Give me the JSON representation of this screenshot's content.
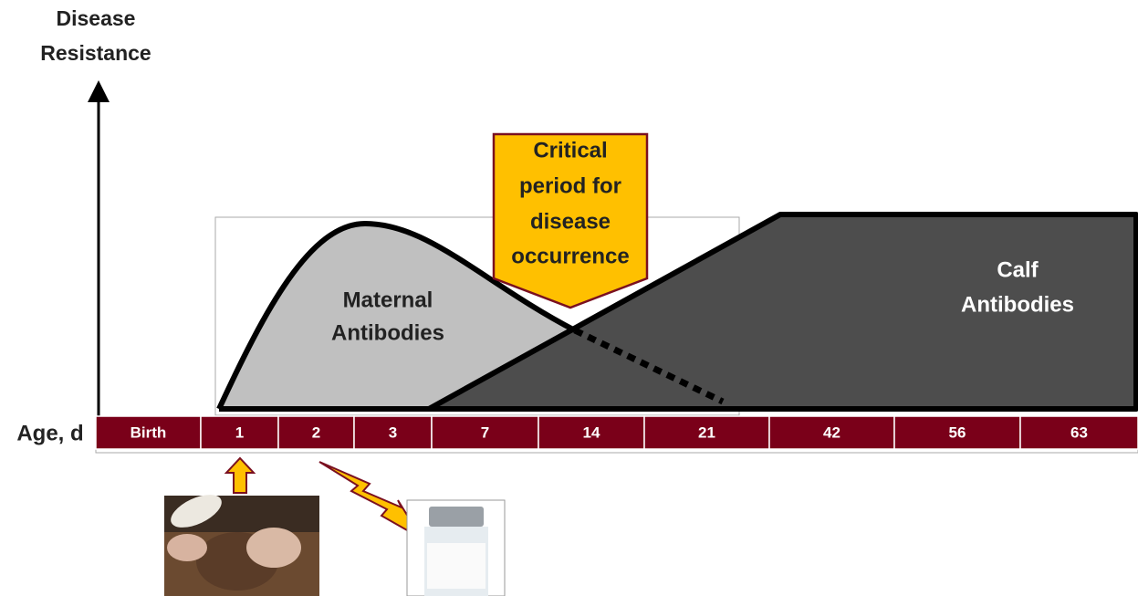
{
  "y_axis_label": [
    "Disease",
    "Resistance"
  ],
  "x_axis_label": "Age, d",
  "timeline": [
    "Birth",
    "1",
    "2",
    "3",
    "7",
    "14",
    "21",
    "42",
    "56",
    "63"
  ],
  "callout": [
    "Critical",
    "period for",
    "disease",
    "occurrence"
  ],
  "maternal_label": [
    "Maternal",
    "Antibodies"
  ],
  "calf_label": [
    "Calf",
    "Antibodies"
  ]
}
